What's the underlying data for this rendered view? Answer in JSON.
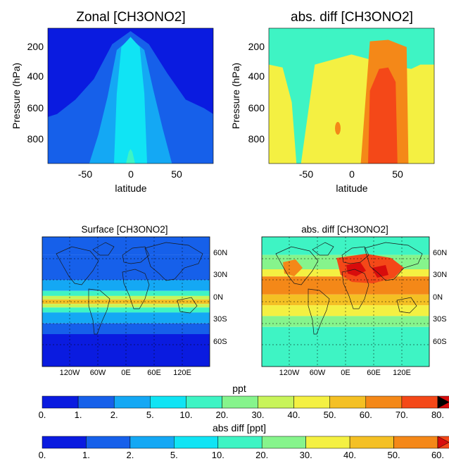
{
  "colors": {
    "ppt": [
      "#0a1be0",
      "#1660ea",
      "#14a8f4",
      "#10e4f4",
      "#3ef4c4",
      "#86f48c",
      "#c8f45a",
      "#f4f042",
      "#f4c024",
      "#f48818",
      "#f44818",
      "#d80c0c"
    ],
    "abs_diff": [
      "#0a1be0",
      "#1660ea",
      "#14a8f4",
      "#10e4f4",
      "#3ef4c4",
      "#86f48c",
      "#f4f042",
      "#f4c024",
      "#f48818",
      "#f44818",
      "#d80c0c"
    ]
  },
  "chart_data": [
    {
      "type": "heatmap",
      "title": "Zonal [CH3ONO2]",
      "xlabel": "latitude",
      "ylabel": "Pressure (hPa)",
      "x_ticks": [
        "-50",
        "0",
        "50"
      ],
      "y_ticks": [
        "200",
        "400",
        "600",
        "800"
      ],
      "xlim": [
        -90,
        90
      ],
      "ylim": [
        980,
        50
      ],
      "colorbar": "ppt",
      "levels": [
        {
          "level": 1,
          "lat": [
            -90,
            -80,
            -60,
            -40,
            -20,
            0,
            20,
            40,
            60,
            80,
            90
          ],
          "p_top": [
            660,
            640,
            540,
            400,
            160,
            70,
            160,
            360,
            540,
            600,
            640
          ]
        },
        {
          "level": 2,
          "lat": [
            -45,
            -35,
            -25,
            -15,
            0,
            15,
            25,
            35,
            45
          ],
          "p_top": [
            980,
            780,
            520,
            200,
            120,
            200,
            480,
            740,
            980
          ]
        },
        {
          "level": 3,
          "lat": [
            -18,
            -15,
            -10,
            0,
            10,
            15,
            18
          ],
          "p_top": [
            980,
            500,
            180,
            110,
            180,
            500,
            980
          ]
        },
        {
          "level": 4,
          "lat": [
            -5,
            -2,
            0,
            2,
            5
          ],
          "p_top": [
            980,
            900,
            880,
            900,
            980
          ]
        }
      ]
    },
    {
      "type": "heatmap",
      "title": "abs. diff [CH3ONO2]",
      "xlabel": "latitude",
      "ylabel": "Pressure (hPa)",
      "x_ticks": [
        "-50",
        "0",
        "50"
      ],
      "y_ticks": [
        "200",
        "400",
        "600",
        "800"
      ],
      "xlim": [
        -90,
        90
      ],
      "ylim": [
        980,
        50
      ],
      "colorbar": "abs_diff",
      "levels": [
        {
          "level": 4,
          "lat": [
            -90,
            -80,
            -60,
            -40,
            -20,
            0,
            20,
            40,
            60,
            80,
            90
          ],
          "p_top": [
            130,
            150,
            150,
            130,
            90,
            70,
            90,
            120,
            130,
            150,
            130
          ]
        },
        {
          "level": 6,
          "lat": [
            -90,
            -75,
            -65,
            -60,
            -55,
            -40,
            0,
            40,
            55,
            65,
            75,
            90
          ],
          "p_top": [
            300,
            320,
            560,
            980,
            980,
            300,
            230,
            300,
            320,
            330,
            300,
            300
          ]
        },
        {
          "level": 8,
          "lat": [
            10,
            20,
            40,
            60,
            62
          ],
          "p_top": [
            980,
            140,
            130,
            180,
            980
          ]
        },
        {
          "level": 9,
          "lat": [
            18,
            20,
            30,
            40,
            48,
            50
          ],
          "p_top": [
            980,
            480,
            330,
            320,
            420,
            980
          ]
        }
      ]
    },
    {
      "type": "heatmap",
      "title": "Surface [CH3ONO2]",
      "x_ticks": [
        "120W",
        "60W",
        "0E",
        "60E",
        "120E"
      ],
      "y_ticks": [
        "60N",
        "30N",
        "0N",
        "30S",
        "60S"
      ],
      "xlim": [
        -180,
        180
      ],
      "ylim": [
        -90,
        90
      ],
      "colorbar": "ppt",
      "bands": [
        {
          "lat_top": 90,
          "lat_bottom": 65,
          "level": 1
        },
        {
          "lat_top": 65,
          "lat_bottom": 30,
          "level": 1
        },
        {
          "lat_top": 30,
          "lat_bottom": 15,
          "level": 2
        },
        {
          "lat_top": 15,
          "lat_bottom": 8,
          "level": 4
        },
        {
          "lat_top": 8,
          "lat_bottom": 3,
          "level": 6
        },
        {
          "lat_top": 3,
          "lat_bottom": -3,
          "level": 8
        },
        {
          "lat_top": -3,
          "lat_bottom": -8,
          "level": 6
        },
        {
          "lat_top": -8,
          "lat_bottom": -15,
          "level": 4
        },
        {
          "lat_top": -15,
          "lat_bottom": -30,
          "level": 2
        },
        {
          "lat_top": -30,
          "lat_bottom": -45,
          "level": 1
        },
        {
          "lat_top": -45,
          "lat_bottom": -90,
          "level": 0
        }
      ]
    },
    {
      "type": "heatmap",
      "title": "abs. diff [CH3ONO2]",
      "x_ticks": [
        "120W",
        "60W",
        "0E",
        "60E",
        "120E"
      ],
      "y_ticks": [
        "60N",
        "30N",
        "0N",
        "30S",
        "60S"
      ],
      "xlim": [
        -180,
        180
      ],
      "ylim": [
        -90,
        90
      ],
      "colorbar": "abs_diff",
      "bands": [
        {
          "lat_top": 90,
          "lat_bottom": 65,
          "level": 4
        },
        {
          "lat_top": 65,
          "lat_bottom": 45,
          "level": 5
        },
        {
          "lat_top": 45,
          "lat_bottom": 35,
          "level": 6
        },
        {
          "lat_top": 35,
          "lat_bottom": 10,
          "level": 8
        },
        {
          "lat_top": 10,
          "lat_bottom": -5,
          "level": 7
        },
        {
          "lat_top": -5,
          "lat_bottom": -20,
          "level": 6
        },
        {
          "lat_top": -20,
          "lat_bottom": -35,
          "level": 5
        },
        {
          "lat_top": -35,
          "lat_bottom": -90,
          "level": 4
        }
      ]
    }
  ],
  "colorbars": [
    {
      "id": "ppt",
      "label": "ppt",
      "ticks": [
        "0.",
        "1.",
        "2.",
        "5.",
        "10.",
        "20.",
        "30.",
        "40.",
        "50.",
        "60.",
        "70.",
        "80."
      ]
    },
    {
      "id": "abs_diff",
      "label": "abs diff [ppt]",
      "ticks": [
        "0.",
        "1.",
        "2.",
        "5.",
        "10.",
        "20.",
        "30.",
        "40.",
        "50.",
        "60."
      ]
    }
  ]
}
